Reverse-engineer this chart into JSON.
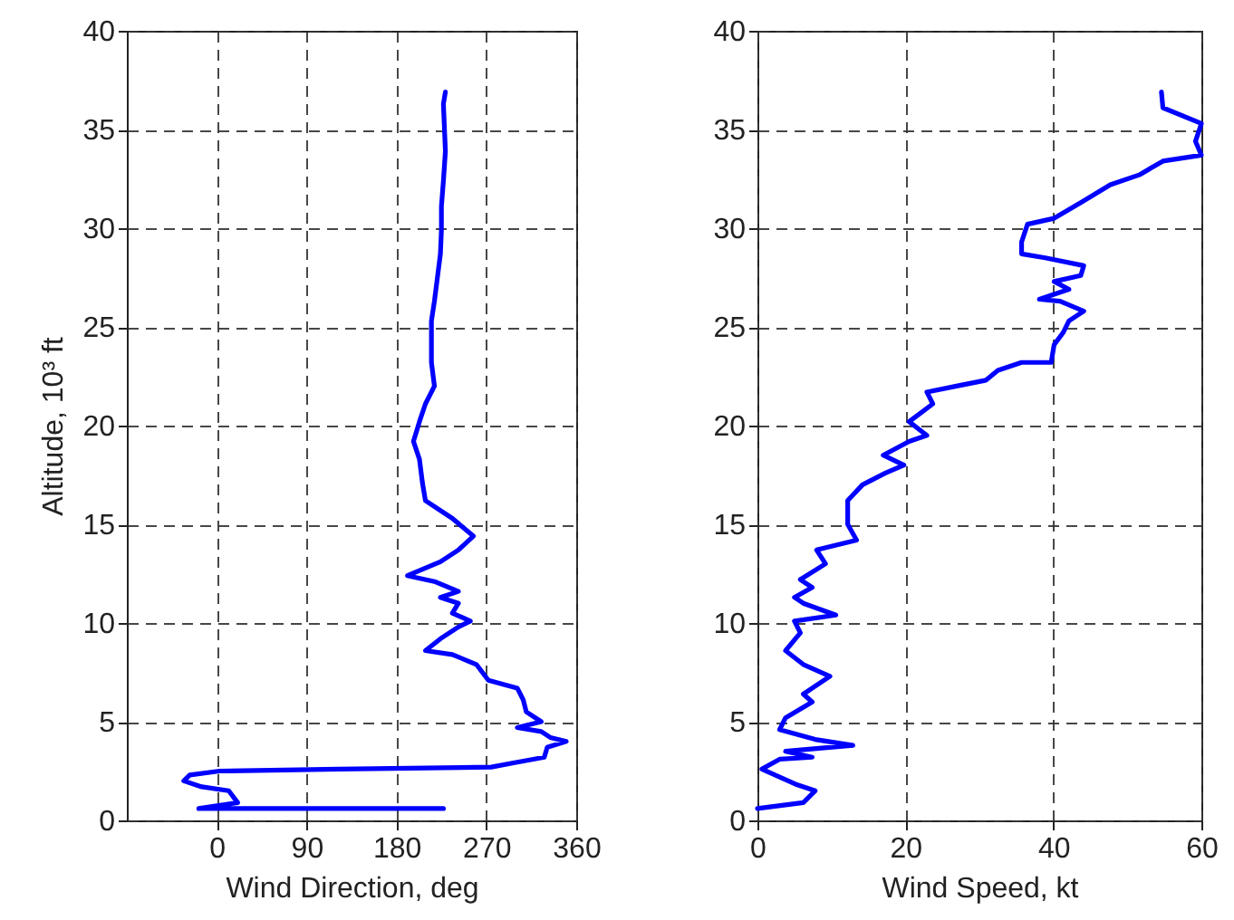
{
  "chart_data": [
    {
      "type": "line",
      "xlabel": "Wind Direction, deg",
      "ylabel": "Altitude, 10³ ft",
      "xlim": [
        -90,
        360
      ],
      "ylim": [
        0,
        40
      ],
      "xticks": [
        0,
        90,
        180,
        270,
        360
      ],
      "yticks": [
        0,
        5,
        10,
        15,
        20,
        25,
        30,
        35,
        40
      ],
      "grid": true,
      "series": [
        {
          "color": "#0000ff",
          "x": [
            227,
            -18,
            21,
            12,
            -15,
            -33,
            -27,
            3,
            122,
            275,
            296,
            328,
            331,
            350,
            334,
            325,
            301,
            325,
            310,
            307,
            301,
            272,
            260,
            236,
            209,
            224,
            242,
            254,
            236,
            242,
            224,
            242,
            218,
            191,
            224,
            242,
            257,
            236,
            209,
            206,
            203,
            197,
            203,
            209,
            218,
            215,
            215,
            215,
            218,
            221,
            224,
            225,
            225,
            227,
            229,
            228,
            227,
            229
          ],
          "values": [
            0.6,
            0.6,
            0.9,
            1.5,
            1.7,
            2.0,
            2.3,
            2.5,
            2.6,
            2.7,
            2.9,
            3.2,
            3.7,
            4.0,
            4.2,
            4.5,
            4.7,
            5.0,
            5.5,
            6.1,
            6.7,
            7.1,
            7.9,
            8.4,
            8.6,
            9.2,
            9.8,
            10.1,
            10.5,
            11.0,
            11.3,
            11.6,
            12.1,
            12.4,
            13.1,
            13.7,
            14.4,
            15.3,
            16.2,
            17.1,
            18.3,
            19.2,
            20.2,
            21.1,
            22.0,
            23.2,
            24.4,
            25.3,
            26.3,
            27.5,
            28.7,
            29.9,
            31.1,
            32.4,
            33.9,
            35.1,
            36.3,
            36.9
          ]
        }
      ]
    },
    {
      "type": "line",
      "xlabel": "Wind Speed, kt",
      "xlim": [
        0,
        60
      ],
      "ylim": [
        0,
        40
      ],
      "xticks": [
        0,
        20,
        40,
        60
      ],
      "yticks": [
        0,
        5,
        10,
        15,
        20,
        25,
        30,
        35,
        40
      ],
      "grid": true,
      "series": [
        {
          "color": "#0000ff",
          "x": [
            0,
            6.2,
            7.8,
            5.4,
            0.6,
            3.0,
            7.4,
            3.8,
            12.9,
            7.8,
            3.0,
            3.8,
            7.4,
            6.2,
            9.8,
            6.2,
            3.8,
            5.8,
            5.0,
            10.6,
            6.2,
            5.0,
            7.4,
            5.8,
            9.2,
            8.0,
            13.4,
            12.2,
            12.2,
            14.2,
            17.3,
            19.8,
            17.0,
            20.5,
            22.9,
            20.5,
            23.7,
            22.9,
            26.9,
            30.9,
            32.5,
            35.7,
            39.7,
            40.1,
            41.3,
            42.1,
            44.1,
            40.9,
            38.1,
            42.1,
            40.1,
            43.7,
            44.1,
            38.9,
            35.7,
            35.7,
            36.5,
            40.1,
            43.7,
            47.7,
            51.6,
            54.8,
            60.0,
            59.2,
            60.0,
            54.8,
            54.6
          ],
          "values": [
            0.6,
            0.9,
            1.5,
            1.8,
            2.6,
            3.1,
            3.2,
            3.5,
            3.8,
            4.1,
            4.6,
            5.2,
            6.0,
            6.4,
            7.3,
            7.9,
            8.6,
            9.5,
            10.1,
            10.4,
            11.0,
            11.3,
            11.8,
            12.2,
            13.0,
            13.7,
            14.2,
            15.0,
            16.2,
            17.0,
            17.6,
            18.0,
            18.5,
            19.2,
            19.5,
            20.2,
            21.1,
            21.7,
            22.0,
            22.3,
            22.8,
            23.2,
            23.2,
            24.1,
            24.7,
            25.3,
            25.8,
            26.3,
            26.4,
            26.9,
            27.3,
            27.6,
            28.1,
            28.5,
            28.7,
            29.3,
            30.2,
            30.5,
            31.3,
            32.2,
            32.7,
            33.4,
            33.7,
            34.4,
            35.3,
            36.1,
            36.9
          ]
        }
      ]
    }
  ]
}
